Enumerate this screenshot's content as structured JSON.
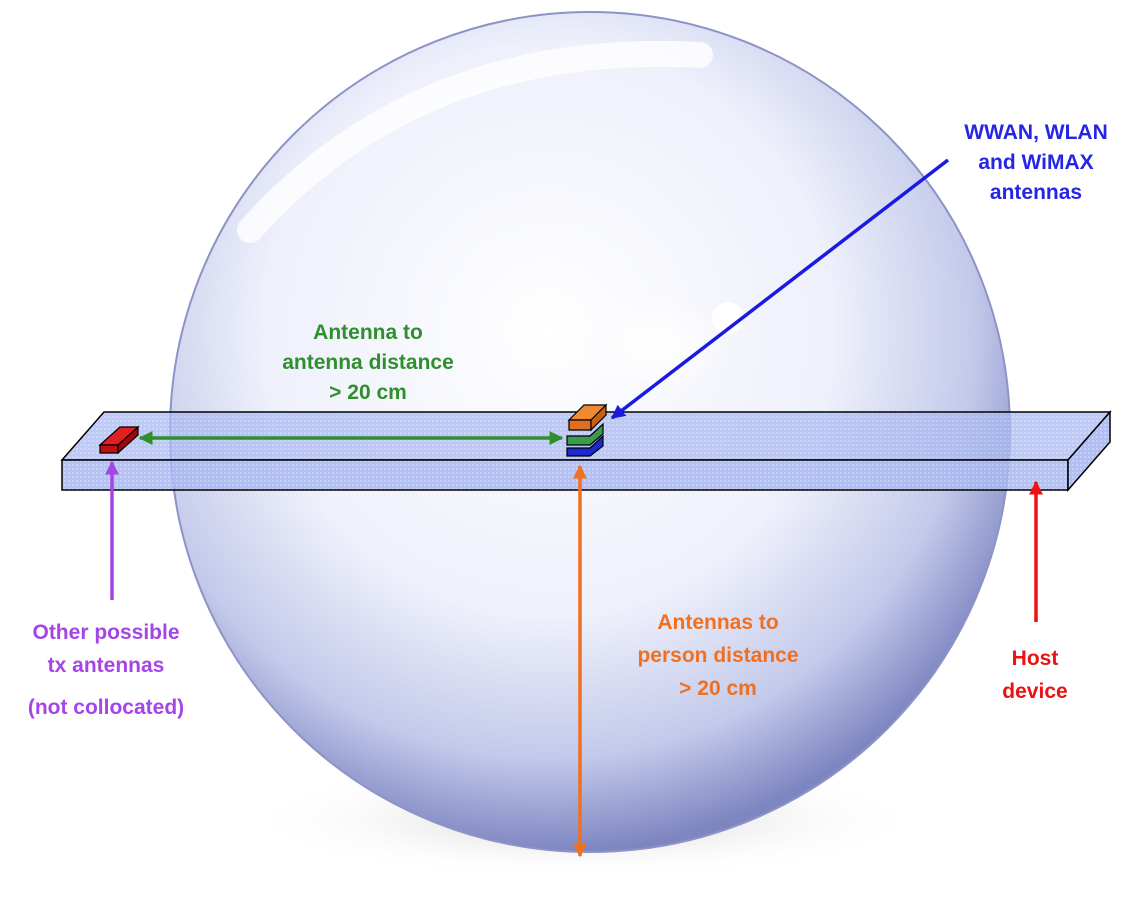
{
  "labels": {
    "antennas": [
      "WWAN, WLAN",
      "and WiMAX",
      "antennas"
    ],
    "antenna_to_antenna": [
      "Antenna to",
      "antenna distance",
      "> 20 cm"
    ],
    "antennas_to_person": [
      "Antennas to",
      "person distance",
      "> 20 cm"
    ],
    "other_antennas": [
      "Other possible",
      "tx antennas",
      "(not collocated)"
    ],
    "host_device": [
      "Host",
      "device"
    ]
  },
  "colors": {
    "antennas_label": "#2525e6",
    "antenna_to_antenna": "#2f8f2f",
    "antennas_to_person": "#f07020",
    "other_antennas": "#a545e6",
    "host_device": "#ee1111",
    "board": "#a9b8f0",
    "red_antenna": "#e32020",
    "orange_antenna": "#f08a30",
    "green_antenna": "#3a9a50",
    "blue_antenna": "#1a2ad0"
  }
}
